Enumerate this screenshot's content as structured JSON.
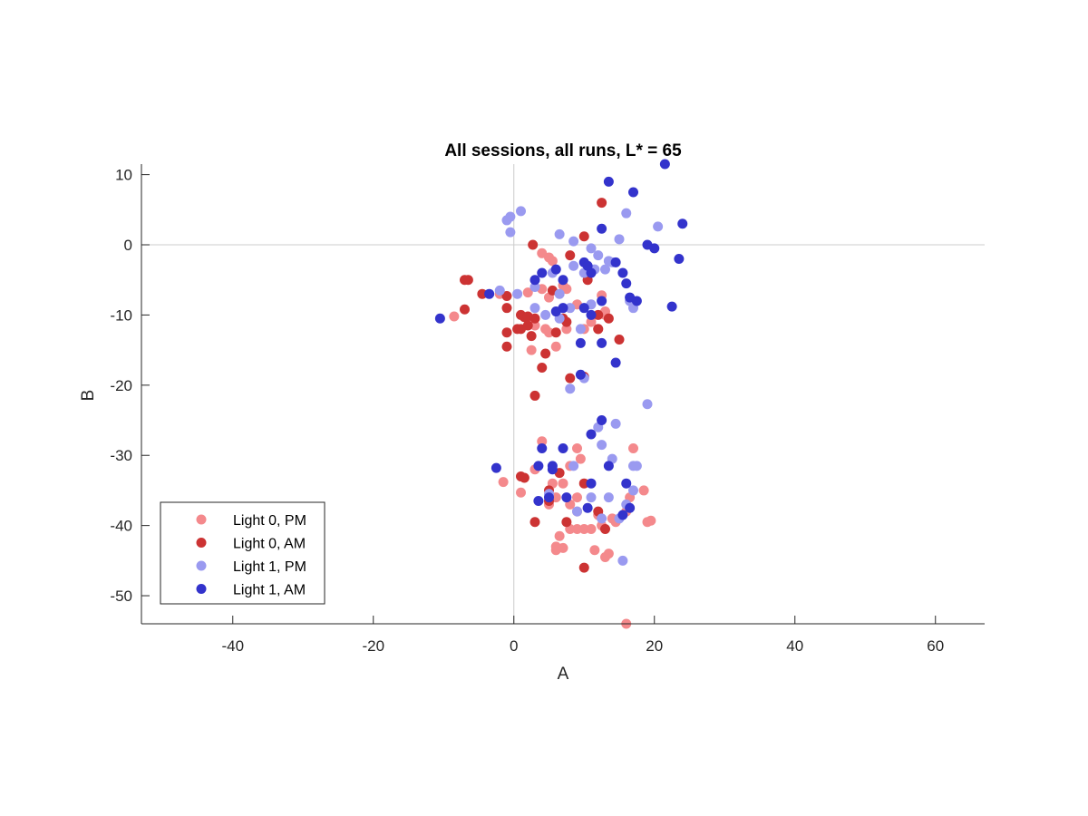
{
  "chart_data": {
    "type": "scatter",
    "title": "All sessions, all runs, L* = 65",
    "xlabel": "A",
    "ylabel": "B",
    "xlim": [
      -53,
      67
    ],
    "ylim": [
      -54,
      11.5
    ],
    "xticks": [
      -40,
      -20,
      0,
      20,
      40,
      60
    ],
    "yticks": [
      10,
      0,
      -10,
      -20,
      -30,
      -40,
      -50
    ],
    "zero_lines": true,
    "grid": false,
    "legend_position": "bottom-left",
    "series": [
      {
        "name": "Light 0, PM",
        "color": "#F4898C",
        "points": [
          [
            2,
            -6.8
          ],
          [
            4,
            -6.3
          ],
          [
            5,
            -7.5
          ],
          [
            7,
            -5.8
          ],
          [
            7.5,
            -6.3
          ],
          [
            2.5,
            -15
          ],
          [
            4,
            -1.2
          ],
          [
            5,
            -1.8
          ],
          [
            5.5,
            -2.3
          ],
          [
            9,
            -8.5
          ],
          [
            10,
            -12
          ],
          [
            11,
            -11
          ],
          [
            12,
            -12
          ],
          [
            13,
            -10
          ],
          [
            12.5,
            -7.2
          ],
          [
            13,
            -9.5
          ],
          [
            7.5,
            -12
          ],
          [
            6,
            -14.5
          ],
          [
            4.5,
            -12
          ],
          [
            3,
            -11.5
          ],
          [
            5,
            -12.5
          ],
          [
            -8.5,
            -10.2
          ],
          [
            -2,
            -7
          ],
          [
            4,
            -28
          ],
          [
            5,
            -37
          ],
          [
            6,
            -36
          ],
          [
            7,
            -34
          ],
          [
            9,
            -29
          ],
          [
            9.5,
            -30.5
          ],
          [
            8,
            -31.5
          ],
          [
            9,
            -36
          ],
          [
            8,
            -37
          ],
          [
            9,
            -38
          ],
          [
            10,
            -40.5
          ],
          [
            11,
            -40.5
          ],
          [
            9,
            -40.5
          ],
          [
            8,
            -40.5
          ],
          [
            6,
            -43.5
          ],
          [
            6,
            -43
          ],
          [
            7,
            -43.2
          ],
          [
            6.5,
            -41.5
          ],
          [
            12,
            -38.5
          ],
          [
            12.5,
            -40
          ],
          [
            13,
            -44.5
          ],
          [
            13.5,
            -44
          ],
          [
            11.5,
            -43.5
          ],
          [
            14,
            -39
          ],
          [
            14.5,
            -39.5
          ],
          [
            17,
            -29
          ],
          [
            18.5,
            -35
          ],
          [
            19,
            -39.5
          ],
          [
            19.5,
            -39.3
          ],
          [
            16,
            -54
          ],
          [
            -1.5,
            -33.8
          ],
          [
            1,
            -35.3
          ],
          [
            3,
            -32
          ],
          [
            5,
            -36
          ],
          [
            5.5,
            -34
          ],
          [
            16,
            -38
          ],
          [
            16.5,
            -36
          ]
        ]
      },
      {
        "name": "Light 0, AM",
        "color": "#CC3333",
        "points": [
          [
            2.7,
            0
          ],
          [
            -6.5,
            -5
          ],
          [
            -7,
            -5
          ],
          [
            -4.5,
            -7
          ],
          [
            -1,
            -7.3
          ],
          [
            -1,
            -9
          ],
          [
            -7,
            -9.2
          ],
          [
            -1,
            -12.5
          ],
          [
            0.5,
            -12
          ],
          [
            -1,
            -14.5
          ],
          [
            1,
            -10
          ],
          [
            1.5,
            -10.3
          ],
          [
            2,
            -10.2
          ],
          [
            2,
            -11.5
          ],
          [
            3,
            -10.5
          ],
          [
            1,
            -12
          ],
          [
            2.5,
            -13
          ],
          [
            3,
            -21.5
          ],
          [
            4,
            -17.5
          ],
          [
            4.5,
            -15.5
          ],
          [
            5.5,
            -6.5
          ],
          [
            6,
            -12.5
          ],
          [
            7,
            -10.5
          ],
          [
            7.5,
            -11
          ],
          [
            8,
            -1.5
          ],
          [
            8,
            -19
          ],
          [
            10,
            -18.8
          ],
          [
            10,
            1.2
          ],
          [
            10.5,
            -5
          ],
          [
            12,
            -10
          ],
          [
            12.5,
            6
          ],
          [
            12,
            -12
          ],
          [
            13.5,
            -10.5
          ],
          [
            15,
            -13.5
          ],
          [
            5,
            -35
          ],
          [
            5,
            -36.5
          ],
          [
            1,
            -33
          ],
          [
            1.5,
            -33.2
          ],
          [
            3,
            -39.5
          ],
          [
            7.5,
            -39.5
          ],
          [
            10,
            -34
          ],
          [
            12,
            -38
          ],
          [
            10,
            -46
          ],
          [
            13,
            -40.5
          ],
          [
            6.5,
            -32.5
          ]
        ]
      },
      {
        "name": "Light 1, PM",
        "color": "#9A9AF0",
        "points": [
          [
            -1,
            3.5
          ],
          [
            -0.5,
            4
          ],
          [
            1,
            4.8
          ],
          [
            -0.5,
            1.8
          ],
          [
            6.5,
            1.5
          ],
          [
            8.5,
            0.5
          ],
          [
            11,
            -0.5
          ],
          [
            12,
            -1.5
          ],
          [
            14,
            -2.5
          ],
          [
            13.5,
            -2.3
          ],
          [
            16,
            4.5
          ],
          [
            15,
            0.8
          ],
          [
            20.5,
            2.6
          ],
          [
            5.5,
            -4
          ],
          [
            8.5,
            -3
          ],
          [
            10,
            -4
          ],
          [
            11.5,
            -3.5
          ],
          [
            13,
            -3.5
          ],
          [
            3,
            -6
          ],
          [
            6.5,
            -7
          ],
          [
            4.5,
            -10
          ],
          [
            9.5,
            -12
          ],
          [
            8,
            -9
          ],
          [
            6.5,
            -10.5
          ],
          [
            11,
            -8.5
          ],
          [
            16.5,
            -8
          ],
          [
            17,
            -9
          ],
          [
            -2,
            -6.5
          ],
          [
            0.5,
            -7
          ],
          [
            3,
            -9
          ],
          [
            8,
            -20.5
          ],
          [
            10,
            -19
          ],
          [
            12,
            -26
          ],
          [
            12.5,
            -28.5
          ],
          [
            14,
            -30.5
          ],
          [
            14.5,
            -25.5
          ],
          [
            19,
            -22.7
          ],
          [
            17,
            -31.5
          ],
          [
            17.5,
            -31.5
          ],
          [
            12.5,
            -39
          ],
          [
            13.5,
            -36
          ],
          [
            16,
            -37
          ],
          [
            17,
            -35
          ],
          [
            15.5,
            -45
          ],
          [
            11,
            -36
          ],
          [
            9,
            -38
          ],
          [
            8.5,
            -31.5
          ],
          [
            5,
            -35.5
          ],
          [
            15,
            -39
          ]
        ]
      },
      {
        "name": "Light 1, AM",
        "color": "#3333CC",
        "points": [
          [
            13.5,
            9
          ],
          [
            17,
            7.5
          ],
          [
            21.5,
            11.5
          ],
          [
            24,
            3
          ],
          [
            12.5,
            2.3
          ],
          [
            19,
            0
          ],
          [
            20,
            -0.5
          ],
          [
            23.5,
            -2
          ],
          [
            10,
            -2.5
          ],
          [
            10.5,
            -3
          ],
          [
            11,
            -4
          ],
          [
            14.5,
            -2.5
          ],
          [
            4,
            -4
          ],
          [
            6,
            -3.5
          ],
          [
            7,
            -5
          ],
          [
            3,
            -5
          ],
          [
            10,
            -9
          ],
          [
            12.5,
            -8
          ],
          [
            11,
            -10
          ],
          [
            9.5,
            -14
          ],
          [
            15.5,
            -4
          ],
          [
            16,
            -5.5
          ],
          [
            17.5,
            -8
          ],
          [
            22.5,
            -8.8
          ],
          [
            16.5,
            -7.5
          ],
          [
            12.5,
            -14
          ],
          [
            14.5,
            -16.8
          ],
          [
            9.5,
            -18.5
          ],
          [
            -10.5,
            -10.5
          ],
          [
            -3.5,
            -7
          ],
          [
            7,
            -9
          ],
          [
            6,
            -9.5
          ],
          [
            12.5,
            -25
          ],
          [
            11,
            -27
          ],
          [
            7,
            -29
          ],
          [
            4,
            -29
          ],
          [
            5.5,
            -32
          ],
          [
            3.5,
            -31.5
          ],
          [
            -2.5,
            -31.8
          ],
          [
            3.5,
            -36.5
          ],
          [
            5,
            -36
          ],
          [
            7.5,
            -36
          ],
          [
            10.5,
            -37.5
          ],
          [
            11,
            -34
          ],
          [
            16,
            -34
          ],
          [
            15.5,
            -38.5
          ],
          [
            16.5,
            -37.5
          ],
          [
            13.5,
            -31.5
          ],
          [
            5.5,
            -31.5
          ]
        ]
      }
    ]
  }
}
